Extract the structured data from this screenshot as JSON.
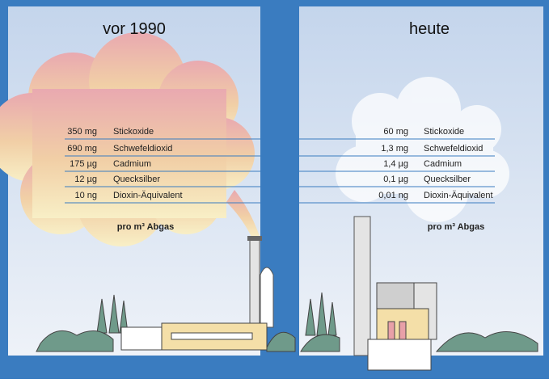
{
  "panels": [
    {
      "title": "vor 1990",
      "rows": [
        {
          "amount": "350 mg",
          "substance": "Stickoxide"
        },
        {
          "amount": "690 mg",
          "substance": "Schwefeldioxid"
        },
        {
          "amount": "175 µg",
          "substance": "Cadmium"
        },
        {
          "amount": "12 µg",
          "substance": "Quecksilber"
        },
        {
          "amount": "10 ng",
          "substance": "Dioxin-Äquivalent"
        }
      ],
      "note": "pro m³ Abgas"
    },
    {
      "title": "heute",
      "rows": [
        {
          "amount": "60 mg",
          "substance": "Stickoxide"
        },
        {
          "amount": "1,3 mg",
          "substance": "Schwefeldioxid"
        },
        {
          "amount": "1,4 µg",
          "substance": "Cadmium"
        },
        {
          "amount": "0,1 µg",
          "substance": "Quecksilber"
        },
        {
          "amount": "0,01 ng",
          "substance": "Dioxin-Äquivalent"
        }
      ],
      "note": "pro m³ Abgas"
    }
  ]
}
